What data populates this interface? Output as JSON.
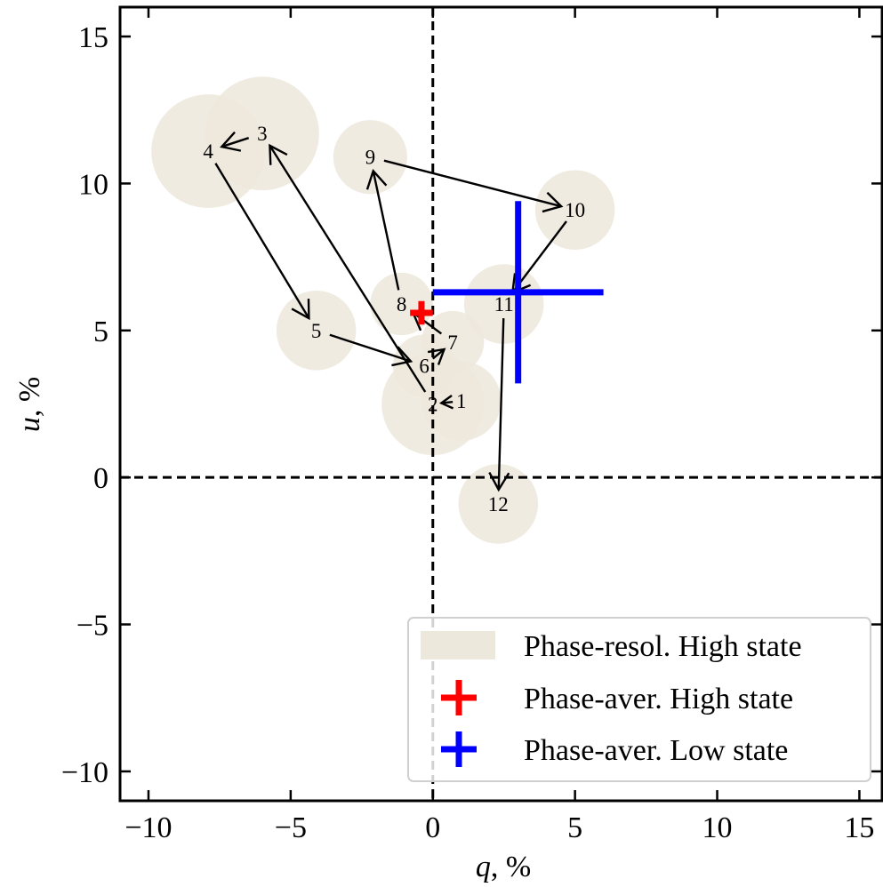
{
  "chart_data": {
    "type": "scatter",
    "xlabel_var": "q",
    "xlabel_unit": ", %",
    "ylabel_var": "u",
    "ylabel_unit": ", %",
    "xlim": [
      -11,
      15.8
    ],
    "ylim": [
      -11,
      16
    ],
    "xticks": [
      -10,
      -5,
      0,
      5,
      10,
      15
    ],
    "yticks": [
      -10,
      -5,
      0,
      5,
      10,
      15
    ],
    "xtick_labels": [
      "−10",
      "−5",
      "0",
      "5",
      "10",
      "15"
    ],
    "ytick_labels": [
      "−10",
      "−5",
      "0",
      "5",
      "10",
      "15"
    ],
    "grid": false,
    "zero_lines": true,
    "phase_resolved_high": [
      {
        "label": "1",
        "x": 1.0,
        "y": 2.6,
        "radius": 1.4
      },
      {
        "label": "2",
        "x": 0.0,
        "y": 2.5,
        "radius": 1.8
      },
      {
        "label": "3",
        "x": -6.0,
        "y": 11.7,
        "radius": 2.0
      },
      {
        "label": "4",
        "x": -7.9,
        "y": 11.1,
        "radius": 2.0
      },
      {
        "label": "5",
        "x": -4.1,
        "y": 5.0,
        "radius": 1.4
      },
      {
        "label": "6",
        "x": -0.3,
        "y": 3.8,
        "radius": 1.1
      },
      {
        "label": "7",
        "x": 0.7,
        "y": 4.6,
        "radius": 1.1
      },
      {
        "label": "8",
        "x": -1.1,
        "y": 5.9,
        "radius": 1.1
      },
      {
        "label": "9",
        "x": -2.2,
        "y": 10.9,
        "radius": 1.3
      },
      {
        "label": "10",
        "x": 5.0,
        "y": 9.1,
        "radius": 1.4
      },
      {
        "label": "11",
        "x": 2.5,
        "y": 5.9,
        "radius": 1.4
      },
      {
        "label": "12",
        "x": 2.3,
        "y": -0.9,
        "radius": 1.4
      }
    ],
    "phase_averaged_high": {
      "x": -0.4,
      "y": 5.6,
      "xerr": 0.4,
      "yerr": 0.4,
      "color": "#ff0000"
    },
    "phase_averaged_low": {
      "x": 3.0,
      "y": 6.3,
      "xerr": 3.0,
      "yerr": 3.1,
      "color": "#0000ff"
    },
    "circle_color": "#ede8dc",
    "arrow_sequence": [
      "1",
      "2",
      "3",
      "4",
      "5",
      "6",
      "7",
      "8",
      "9",
      "10",
      "11",
      "12"
    ],
    "legend": {
      "position": "bottom-right",
      "entries": [
        {
          "label": "Phase-resol. High state",
          "kind": "patch",
          "color": "#ede8dc"
        },
        {
          "label": "Phase-aver. High state",
          "kind": "cross",
          "color": "#ff0000"
        },
        {
          "label": "Phase-aver. Low state",
          "kind": "cross",
          "color": "#0000ff"
        }
      ]
    }
  }
}
